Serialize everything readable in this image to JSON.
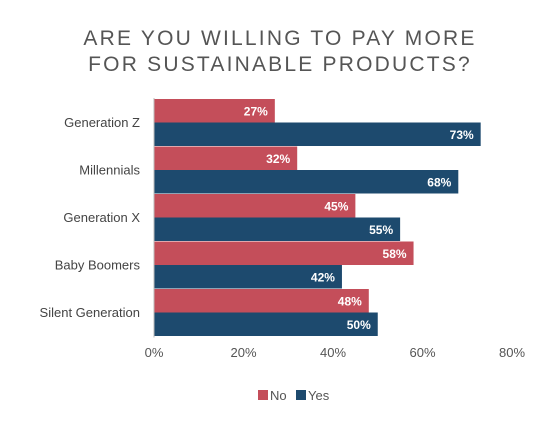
{
  "title_line1": "ARE YOU WILLING TO PAY MORE",
  "title_line2": "FOR SUSTAINABLE PRODUCTS?",
  "chart_data": {
    "type": "bar",
    "orientation": "horizontal",
    "title": "ARE YOU WILLING TO PAY MORE FOR SUSTAINABLE PRODUCTS?",
    "categories": [
      "Generation Z",
      "Millennials",
      "Generation X",
      "Baby Boomers",
      "Silent Generation"
    ],
    "series": [
      {
        "name": "No",
        "color": "#c44e5a",
        "values": [
          27,
          32,
          45,
          58,
          48
        ],
        "labels": [
          "27%",
          "32%",
          "45%",
          "58%",
          "48%"
        ]
      },
      {
        "name": "Yes",
        "color": "#1d4a6e",
        "values": [
          73,
          68,
          55,
          42,
          50
        ],
        "labels": [
          "73%",
          "68%",
          "55%",
          "42%",
          "50%"
        ]
      }
    ],
    "xlim": [
      0,
      80
    ],
    "xticks": [
      "0%",
      "20%",
      "40%",
      "60%",
      "80%"
    ],
    "xtick_values": [
      0,
      20,
      40,
      60,
      80
    ],
    "grid": false,
    "legend_position": "bottom"
  }
}
